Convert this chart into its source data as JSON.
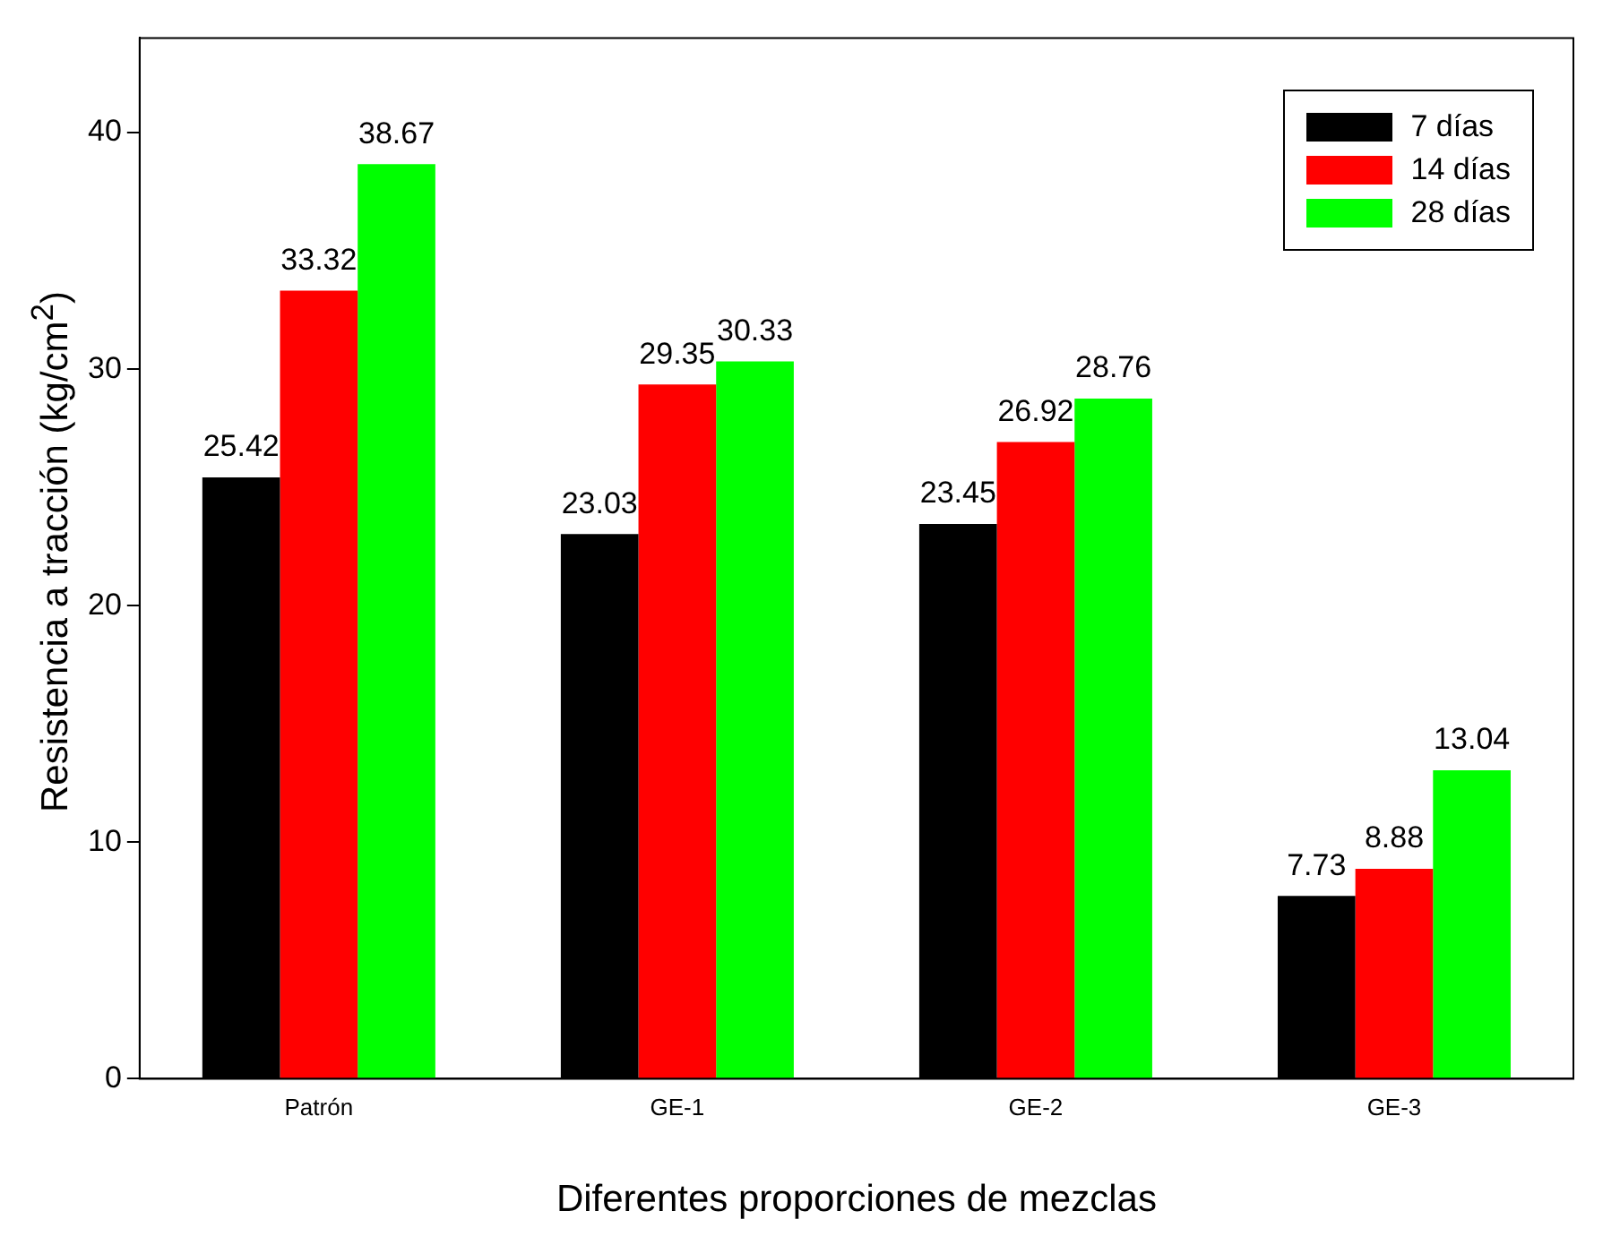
{
  "chart_data": {
    "type": "bar",
    "xlabel": "Diferentes proporciones de mezclas",
    "ylabel": "Resistencia a tracción (kg/cm$^{2}$)",
    "categories": [
      "Patrón",
      "GE-1",
      "GE-2",
      "GE-3"
    ],
    "series": [
      {
        "name": "7 días",
        "color": "#000000",
        "values": [
          25.42,
          23.03,
          23.45,
          7.73
        ]
      },
      {
        "name": "14 días",
        "color": "#ff0000",
        "values": [
          33.32,
          29.35,
          26.92,
          8.88
        ]
      },
      {
        "name": "28 días",
        "color": "#00ff00",
        "values": [
          38.67,
          30.33,
          28.76,
          13.04
        ]
      }
    ],
    "ylim": [
      0,
      44
    ],
    "yticks": [
      0,
      10,
      20,
      30,
      40
    ],
    "grid": false,
    "legend": "top right",
    "data_labels": true
  }
}
